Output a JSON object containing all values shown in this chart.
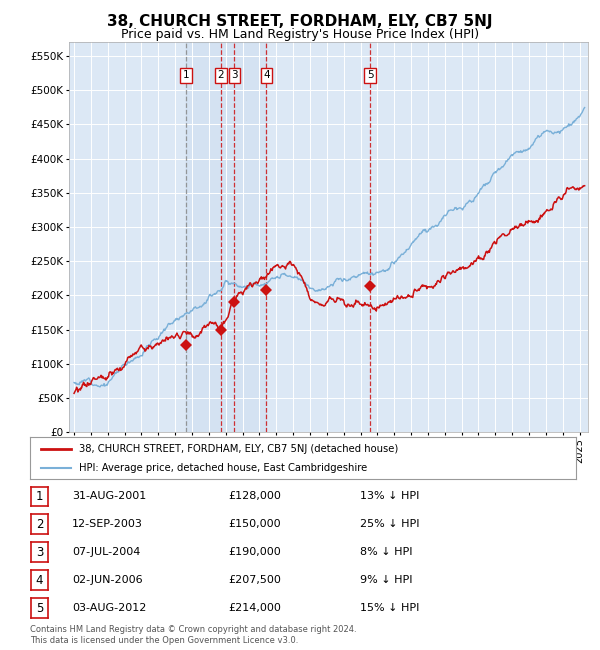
{
  "title": "38, CHURCH STREET, FORDHAM, ELY, CB7 5NJ",
  "subtitle": "Price paid vs. HM Land Registry's House Price Index (HPI)",
  "title_fontsize": 11,
  "subtitle_fontsize": 9,
  "background_color": "#ffffff",
  "plot_bg_color": "#dce8f5",
  "grid_color": "#ffffff",
  "hpi_line_color": "#7ab0d8",
  "price_line_color": "#cc1111",
  "sale_marker_color": "#cc1111",
  "ylim": [
    0,
    570000
  ],
  "yticks": [
    0,
    50000,
    100000,
    150000,
    200000,
    250000,
    300000,
    350000,
    400000,
    450000,
    500000,
    550000
  ],
  "xlim_start": 1994.7,
  "xlim_end": 2025.5,
  "footer_text": "Contains HM Land Registry data © Crown copyright and database right 2024.\nThis data is licensed under the Open Government Licence v3.0.",
  "legend_items": [
    "38, CHURCH STREET, FORDHAM, ELY, CB7 5NJ (detached house)",
    "HPI: Average price, detached house, East Cambridgeshire"
  ],
  "sales": [
    {
      "num": 1,
      "date": "31-AUG-2001",
      "price": 128000,
      "pct": "13%",
      "year": 2001.667
    },
    {
      "num": 2,
      "date": "12-SEP-2003",
      "price": 150000,
      "pct": "25%",
      "year": 2003.708
    },
    {
      "num": 3,
      "date": "07-JUL-2004",
      "price": 190000,
      "pct": "8%",
      "year": 2004.521
    },
    {
      "num": 4,
      "date": "02-JUN-2006",
      "price": 207500,
      "pct": "9%",
      "year": 2006.417
    },
    {
      "num": 5,
      "date": "03-AUG-2012",
      "price": 214000,
      "pct": "15%",
      "year": 2012.583
    }
  ]
}
